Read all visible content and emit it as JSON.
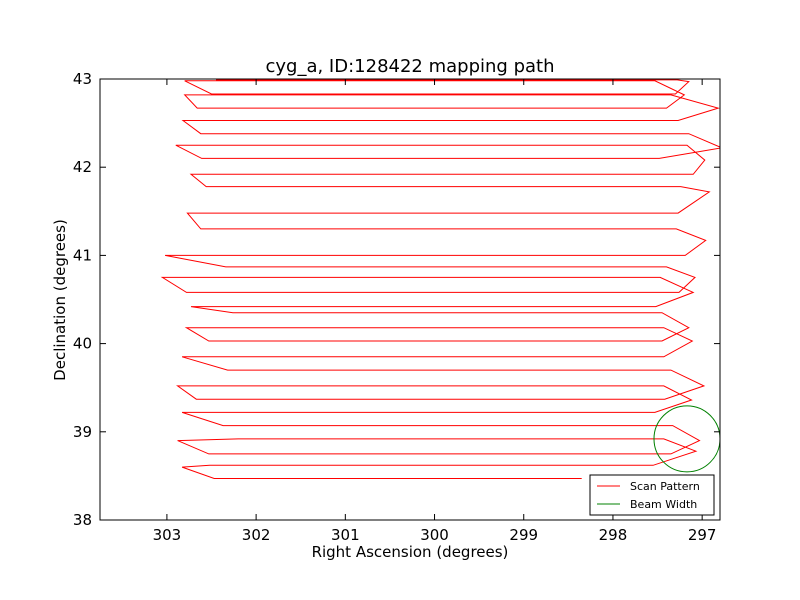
{
  "chart_data": {
    "type": "line",
    "title": "cyg_a, ID:128422 mapping path",
    "xlabel": "Right Ascension (degrees)",
    "ylabel": "Declination (degrees)",
    "xlim": [
      303.75,
      296.8
    ],
    "ylim": [
      38,
      43
    ],
    "x_ticks": [
      303,
      302,
      301,
      300,
      299,
      298,
      297
    ],
    "y_ticks": [
      38,
      39,
      40,
      41,
      42,
      43
    ],
    "x_tick_labels": [
      "303",
      "302",
      "301",
      "300",
      "299",
      "298",
      "297"
    ],
    "y_tick_labels": [
      "38",
      "39",
      "40",
      "41",
      "42",
      "43"
    ],
    "grid": false,
    "legend": {
      "placement": "lower-right",
      "entries": [
        {
          "name": "Scan Pattern",
          "color": "#ff0000"
        },
        {
          "name": "Beam Width",
          "color": "#008000"
        }
      ]
    },
    "series": [
      {
        "name": "Scan Pattern",
        "color": "#ff0000",
        "x": [
          298.35,
          302.47,
          302.83,
          302.52,
          297.55,
          297.07,
          297.43,
          302.2,
          302.88,
          302.53,
          297.35,
          297.03,
          297.33,
          302.37,
          302.83,
          302.55,
          297.53,
          297.12,
          297.43,
          302.45,
          302.88,
          302.67,
          297.42,
          296.98,
          297.35,
          302.32,
          302.83,
          302.55,
          297.43,
          297.11,
          297.43,
          302.36,
          302.78,
          302.53,
          297.45,
          297.15,
          297.45,
          302.26,
          302.73,
          302.42,
          297.52,
          297.1,
          297.47,
          302.02,
          303.05,
          302.78,
          297.26,
          297.08,
          297.4,
          302.34,
          303.02,
          302.72,
          297.19,
          296.96,
          297.29,
          302.62,
          302.77,
          302.65,
          297.27,
          296.92,
          297.24,
          302.56,
          302.73,
          302.5,
          297.1,
          296.97,
          297.17,
          302.6,
          302.9,
          302.61,
          297.48,
          296.78,
          297.15,
          302.62,
          302.82,
          302.72,
          297.27,
          296.82,
          297.35,
          302.36,
          302.8,
          302.66,
          297.4,
          297.2,
          297.53,
          302.47,
          302.8,
          302.5,
          297.3,
          297.15,
          297.28,
          302.45
        ],
        "y": [
          38.47,
          38.47,
          38.6,
          38.62,
          38.62,
          38.78,
          38.92,
          38.92,
          38.9,
          38.75,
          38.75,
          38.9,
          39.07,
          39.07,
          39.22,
          39.22,
          39.22,
          39.36,
          39.52,
          39.52,
          39.52,
          39.37,
          39.37,
          39.52,
          39.7,
          39.7,
          39.85,
          39.85,
          39.85,
          40.03,
          40.18,
          40.18,
          40.18,
          40.03,
          40.03,
          40.18,
          40.35,
          40.35,
          40.42,
          40.42,
          40.42,
          40.58,
          40.75,
          40.75,
          40.75,
          40.58,
          40.58,
          40.75,
          40.87,
          40.87,
          41.0,
          41.0,
          41.0,
          41.17,
          41.3,
          41.3,
          41.48,
          41.48,
          41.48,
          41.72,
          41.78,
          41.78,
          41.92,
          41.92,
          41.92,
          42.08,
          42.25,
          42.25,
          42.25,
          42.1,
          42.1,
          42.22,
          42.38,
          42.38,
          42.53,
          42.53,
          42.53,
          42.67,
          42.82,
          42.82,
          42.82,
          42.67,
          42.67,
          42.82,
          42.98,
          42.98,
          42.98,
          42.83,
          42.83,
          42.97,
          42.99,
          42.99
        ]
      },
      {
        "name": "Beam Width",
        "color": "#008000",
        "shape": "circle",
        "center": [
          297.17,
          38.92
        ],
        "radius": 0.37
      }
    ]
  }
}
